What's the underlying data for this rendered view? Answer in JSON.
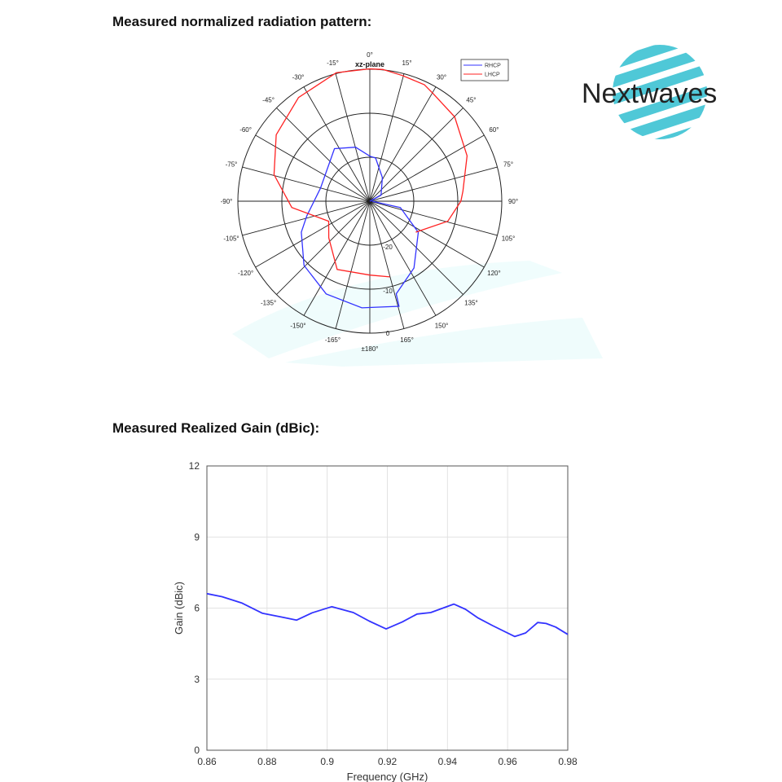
{
  "titles": {
    "radiation": "Measured normalized radiation pattern:",
    "gain": "Measured Realized Gain (dBic):"
  },
  "logo": {
    "text": "Nextwaves",
    "color": "#3cc3d3",
    "text_color": "#222222"
  },
  "watermark": {
    "text": "Nextwaves"
  },
  "chart_data": [
    {
      "type": "polar-line",
      "title": "xz-plane",
      "zero_label": "0°",
      "angle_ticks": [
        {
          "angle": 15,
          "label": "15°"
        },
        {
          "angle": 30,
          "label": "30°"
        },
        {
          "angle": 45,
          "label": "45°"
        },
        {
          "angle": 60,
          "label": "60°"
        },
        {
          "angle": 75,
          "label": "75°"
        },
        {
          "angle": 90,
          "label": "90°"
        },
        {
          "angle": 105,
          "label": "105°"
        },
        {
          "angle": 120,
          "label": "120°"
        },
        {
          "angle": 135,
          "label": "135°"
        },
        {
          "angle": 150,
          "label": "150°"
        },
        {
          "angle": 165,
          "label": "165°"
        },
        {
          "angle": 180,
          "label": "±180°"
        },
        {
          "angle": -165,
          "label": "-165°"
        },
        {
          "angle": -150,
          "label": "-150°"
        },
        {
          "angle": -135,
          "label": "-135°"
        },
        {
          "angle": -120,
          "label": "-120°"
        },
        {
          "angle": -105,
          "label": "-105°"
        },
        {
          "angle": -90,
          "label": "-90°"
        },
        {
          "angle": -75,
          "label": "-75°"
        },
        {
          "angle": -60,
          "label": "-60°"
        },
        {
          "angle": -45,
          "label": "-45°"
        },
        {
          "angle": -30,
          "label": "-30°"
        },
        {
          "angle": -15,
          "label": "-15°"
        }
      ],
      "r_range": [
        -30,
        0
      ],
      "r_ticks": [
        {
          "value": -20,
          "label": "-20"
        },
        {
          "value": -10,
          "label": "-10"
        },
        {
          "value": 0,
          "label": "0"
        }
      ],
      "legend_position": "top-right",
      "series": [
        {
          "name": "RHCP",
          "color": "#3333ff",
          "points": [
            [
              90,
              -30
            ],
            [
              61.8,
              -27.1
            ],
            [
              27.9,
              -23.9
            ],
            [
              7.6,
              -20.1
            ],
            [
              0,
              -19.75
            ],
            [
              -14.8,
              -17.3
            ],
            [
              -33.9,
              -15.6
            ],
            [
              -75.3,
              -18.4
            ],
            [
              -103,
              -15.3
            ],
            [
              -114.4,
              -12.9
            ],
            [
              -134.3,
              -9.1
            ],
            [
              -154.8,
              -6.7
            ],
            [
              -175.7,
              -5.7
            ],
            [
              164.5,
              -5.2
            ],
            [
              164.1,
              -8.1
            ],
            [
              146.5,
              -11.8
            ],
            [
              122.7,
              -16.9
            ],
            [
              101.7,
              -22.9
            ],
            [
              90,
              -29.5
            ]
          ]
        },
        {
          "name": "LHCP",
          "color": "#ff2222",
          "points": [
            [
              124,
              -17.4
            ],
            [
              104.4,
              -11.7
            ],
            [
              90,
              -9.3
            ],
            [
              83.8,
              -8.7
            ],
            [
              71.7,
              -7.1
            ],
            [
              65,
              -5.6
            ],
            [
              45.2,
              -2.8
            ],
            [
              30.3,
              -1.6
            ],
            [
              25.1,
              -0.75
            ],
            [
              14.6,
              -0.5
            ],
            [
              5.7,
              0.1
            ],
            [
              0,
              0.1
            ],
            [
              -14.6,
              0.2
            ],
            [
              -34.5,
              -1.4
            ],
            [
              -54.6,
              -3.9
            ],
            [
              -74.5,
              -7.4
            ],
            [
              -94.6,
              -12.2
            ],
            [
              -116,
              -19.6
            ],
            [
              -131.7,
              -17.5
            ],
            [
              -154.4,
              -12.8
            ],
            [
              180,
              -13.2
            ],
            [
              165.2,
              -12.2
            ]
          ]
        }
      ]
    },
    {
      "type": "line",
      "title": "",
      "xlabel": "Frequency (GHz)",
      "ylabel": "Gain (dBic)",
      "xlim": [
        0.86,
        0.98
      ],
      "ylim": [
        0,
        12
      ],
      "xticks": [
        "0.86",
        "0.88",
        "0.9",
        "0.92",
        "0.94",
        "0.96",
        "0.98"
      ],
      "yticks": [
        "0",
        "3",
        "6",
        "9",
        "12"
      ],
      "grid": true,
      "series": [
        {
          "name": "Gain",
          "color": "#3333ff",
          "x": [
            0.86,
            0.865,
            0.8717,
            0.8785,
            0.885,
            0.8898,
            0.895,
            0.9015,
            0.9087,
            0.914,
            0.9196,
            0.925,
            0.9299,
            0.9344,
            0.9421,
            0.946,
            0.9502,
            0.955,
            0.9624,
            0.966,
            0.97,
            0.9728,
            0.976,
            0.98
          ],
          "y": [
            6.61,
            6.48,
            6.21,
            5.78,
            5.62,
            5.49,
            5.8,
            6.06,
            5.81,
            5.45,
            5.12,
            5.42,
            5.75,
            5.81,
            6.17,
            5.95,
            5.58,
            5.26,
            4.8,
            4.95,
            5.39,
            5.35,
            5.2,
            4.89
          ]
        }
      ]
    }
  ]
}
